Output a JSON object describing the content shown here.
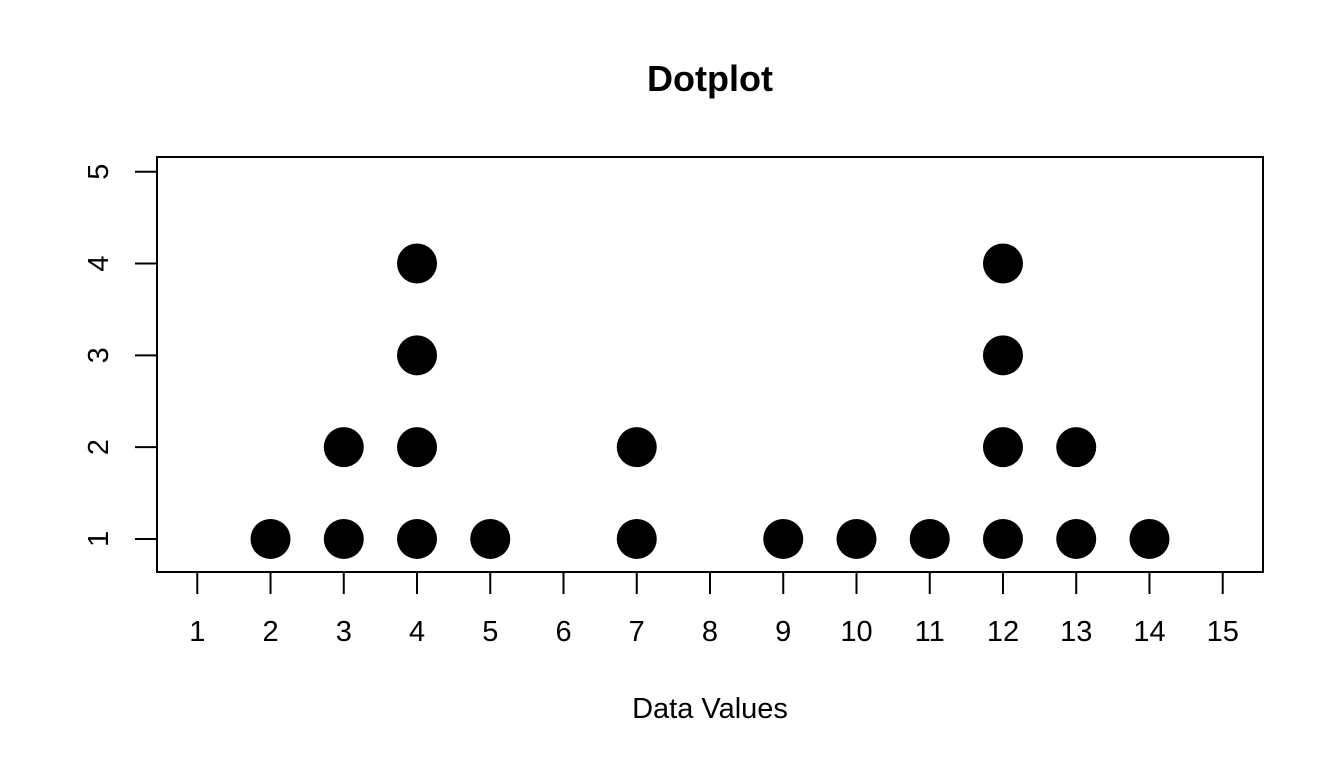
{
  "chart_data": {
    "type": "scatter",
    "subtype": "dotplot",
    "title": "Dotplot",
    "xlabel": "Data Values",
    "ylabel": "",
    "xlim": [
      0.45,
      15.55
    ],
    "ylim": [
      0.64,
      5.16
    ],
    "x_ticks": [
      1,
      2,
      3,
      4,
      5,
      6,
      7,
      8,
      9,
      10,
      11,
      12,
      13,
      14,
      15
    ],
    "y_ticks": [
      1,
      2,
      3,
      4,
      5
    ],
    "grid": false,
    "legend": "none",
    "marker_color": "#000000",
    "points": [
      {
        "x": 2,
        "y": 1
      },
      {
        "x": 3,
        "y": 1
      },
      {
        "x": 3,
        "y": 2
      },
      {
        "x": 4,
        "y": 1
      },
      {
        "x": 4,
        "y": 2
      },
      {
        "x": 4,
        "y": 3
      },
      {
        "x": 4,
        "y": 4
      },
      {
        "x": 5,
        "y": 1
      },
      {
        "x": 7,
        "y": 1
      },
      {
        "x": 7,
        "y": 2
      },
      {
        "x": 9,
        "y": 1
      },
      {
        "x": 10,
        "y": 1
      },
      {
        "x": 11,
        "y": 1
      },
      {
        "x": 12,
        "y": 1
      },
      {
        "x": 12,
        "y": 2
      },
      {
        "x": 12,
        "y": 3
      },
      {
        "x": 12,
        "y": 4
      },
      {
        "x": 13,
        "y": 1
      },
      {
        "x": 13,
        "y": 2
      },
      {
        "x": 14,
        "y": 1
      }
    ]
  }
}
